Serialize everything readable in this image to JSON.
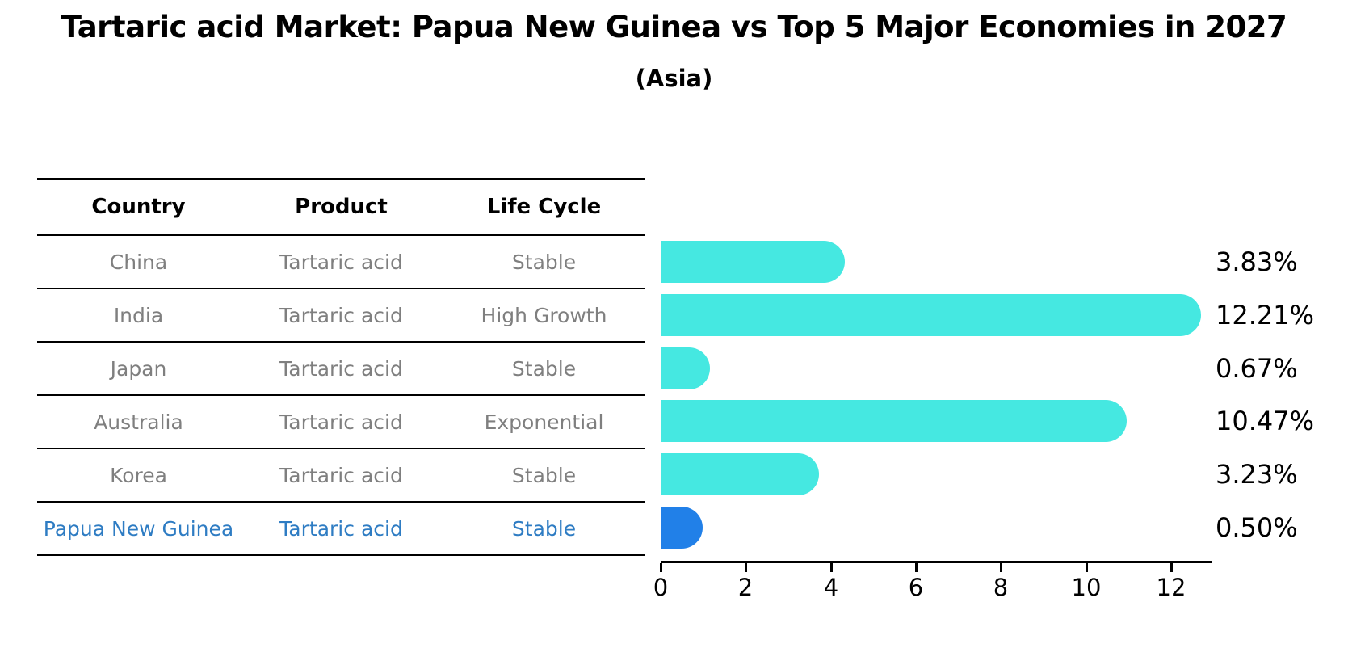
{
  "title": "Tartaric acid Market: Papua New Guinea vs Top 5 Major Economies in 2027",
  "subtitle": "(Asia)",
  "table": {
    "headers": [
      "Country",
      "Product",
      "Life Cycle"
    ],
    "rows": [
      {
        "country": "China",
        "product": "Tartaric acid",
        "life_cycle": "Stable",
        "highlighted": false
      },
      {
        "country": "India",
        "product": "Tartaric acid",
        "life_cycle": "High Growth",
        "highlighted": false
      },
      {
        "country": "Japan",
        "product": "Tartaric acid",
        "life_cycle": "Stable",
        "highlighted": false
      },
      {
        "country": "Australia",
        "product": "Tartaric acid",
        "life_cycle": "Exponential",
        "highlighted": false
      },
      {
        "country": "Korea",
        "product": "Tartaric acid",
        "life_cycle": "Stable",
        "highlighted": false
      },
      {
        "country": "Papua New Guinea",
        "product": "Tartaric acid",
        "life_cycle": "Stable",
        "highlighted": true
      }
    ]
  },
  "chart_data": {
    "type": "bar",
    "orientation": "horizontal",
    "title": "Tartaric acid Market: Papua New Guinea vs Top 5 Major Economies in 2027 (Asia)",
    "categories": [
      "China",
      "India",
      "Japan",
      "Australia",
      "Korea",
      "Papua New Guinea"
    ],
    "values": [
      3.83,
      12.21,
      0.67,
      10.47,
      3.23,
      0.5
    ],
    "value_labels": [
      "3.83%",
      "12.21%",
      "0.67%",
      "10.47%",
      "3.23%",
      "0.50%"
    ],
    "units": "percent",
    "x_ticks": [
      0,
      2,
      4,
      6,
      8,
      10,
      12
    ],
    "xlim": [
      0,
      12.95
    ],
    "grid": false,
    "legend": false,
    "highlight_index": 5
  },
  "colors": {
    "bar_default": "#45e8e1",
    "bar_highlight": "#2180e8",
    "highlight_text": "#2e7cc3",
    "row_text": "#7f7f7f",
    "header_text": "#000000",
    "axis": "#000000",
    "background": "#ffffff"
  }
}
